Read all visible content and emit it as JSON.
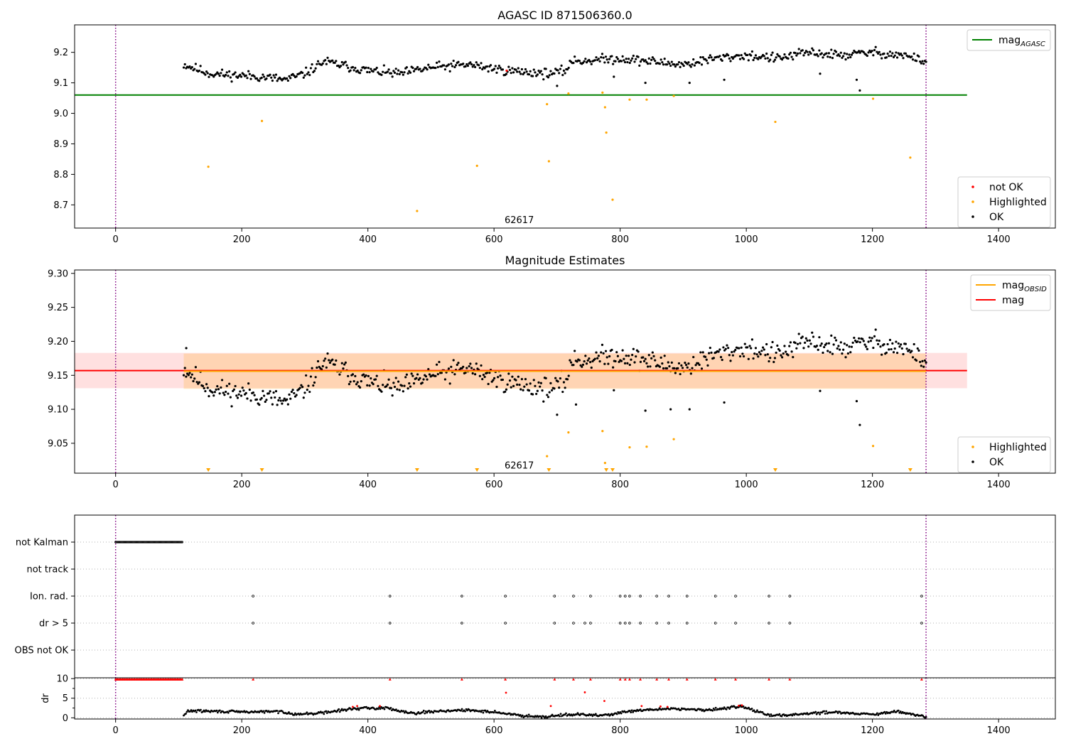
{
  "chart_data": [
    {
      "id": "top",
      "type": "scatter",
      "title": "AGASC ID 871506360.0",
      "xlim": [
        -65,
        1490
      ],
      "ylim": [
        8.624,
        9.29
      ],
      "xticks": [
        0,
        200,
        400,
        600,
        800,
        1000,
        1200,
        1400
      ],
      "yticks": [
        8.7,
        8.8,
        8.9,
        9.0,
        9.1,
        9.2
      ],
      "ytick_labels": [
        "8.7",
        "8.8",
        "8.9",
        "9.0",
        "9.1",
        "9.2"
      ],
      "vlines": [
        0,
        1285
      ],
      "annotation": {
        "text": "62617",
        "x": 640,
        "y": 8.65
      },
      "hline": {
        "name_base": "mag",
        "name_sub": "AGASC",
        "y": 9.06,
        "x0": -65,
        "x1": 1350,
        "color": "#008000"
      },
      "legend_top": [
        {
          "label": "mag",
          "sub": "AGASC",
          "color": "#008000",
          "kind": "line"
        }
      ],
      "legend_bottom": [
        {
          "label": "not OK",
          "color": "#ff0000",
          "kind": "dot"
        },
        {
          "label": "Highlighted",
          "color": "#ffa500",
          "kind": "dot"
        },
        {
          "label": "OK",
          "color": "#000000",
          "kind": "dot"
        }
      ],
      "trend": {
        "x_start": 108,
        "x_end": 1285,
        "n": 620,
        "knots": [
          [
            108,
            9.16
          ],
          [
            150,
            9.13
          ],
          [
            230,
            9.12
          ],
          [
            270,
            9.11
          ],
          [
            300,
            9.13
          ],
          [
            330,
            9.17
          ],
          [
            400,
            9.14
          ],
          [
            450,
            9.13
          ],
          [
            500,
            9.15
          ],
          [
            560,
            9.16
          ],
          [
            620,
            9.14
          ],
          [
            690,
            9.13
          ],
          [
            715,
            9.14
          ],
          [
            720,
            9.17
          ],
          [
            800,
            9.18
          ],
          [
            850,
            9.17
          ],
          [
            900,
            9.16
          ],
          [
            950,
            9.18
          ],
          [
            1000,
            9.19
          ],
          [
            1050,
            9.18
          ],
          [
            1100,
            9.2
          ],
          [
            1150,
            9.19
          ],
          [
            1200,
            9.2
          ],
          [
            1250,
            9.19
          ],
          [
            1285,
            9.17
          ]
        ],
        "spread": 0.012
      },
      "outliers": [
        [
          1180,
          9.075
        ],
        [
          1175,
          9.11
        ],
        [
          1117,
          9.13
        ],
        [
          965,
          9.11
        ],
        [
          910,
          9.1
        ],
        [
          840,
          9.1
        ],
        [
          790,
          9.12
        ],
        [
          700,
          9.09
        ]
      ],
      "highlighted": [
        [
          147,
          8.825
        ],
        [
          232,
          8.975
        ],
        [
          478,
          8.68
        ],
        [
          573,
          8.828
        ],
        [
          684,
          9.03
        ],
        [
          687,
          8.843
        ],
        [
          718,
          9.065
        ],
        [
          772,
          9.068
        ],
        [
          776,
          9.02
        ],
        [
          778,
          8.937
        ],
        [
          788,
          8.717
        ],
        [
          815,
          9.045
        ],
        [
          842,
          9.045
        ],
        [
          885,
          9.057
        ],
        [
          1046,
          8.972
        ],
        [
          1201,
          9.048
        ],
        [
          1260,
          8.855
        ]
      ],
      "not_ok": [
        [
          620,
          9.14
        ]
      ]
    },
    {
      "id": "mid",
      "type": "scatter",
      "title": "Magnitude Estimates",
      "xlim": [
        -65,
        1490
      ],
      "ylim": [
        9.006,
        9.305
      ],
      "xticks": [
        0,
        200,
        400,
        600,
        800,
        1000,
        1200,
        1400
      ],
      "yticks": [
        9.05,
        9.1,
        9.15,
        9.2,
        9.25,
        9.3
      ],
      "ytick_labels": [
        "9.05",
        "9.10",
        "9.15",
        "9.20",
        "9.25",
        "9.30"
      ],
      "vlines": [
        0,
        1285
      ],
      "annotation": {
        "text": "62617",
        "x": 640,
        "y": 9.017
      },
      "mag": {
        "y": 9.157,
        "band": [
          9.131,
          9.183
        ],
        "x0": -65,
        "x1": 1350,
        "color": "#ff0000"
      },
      "mag_obsid": {
        "y": 9.156,
        "band": [
          9.13,
          9.182
        ],
        "x0": 108,
        "x1": 1285,
        "color": "#ffa500"
      },
      "legend_top": [
        {
          "label": "mag",
          "sub": "OBSID",
          "color": "#ffa500",
          "kind": "line"
        },
        {
          "label": "mag",
          "sub": "",
          "color": "#ff0000",
          "kind": "line"
        }
      ],
      "legend_bottom": [
        {
          "label": "Highlighted",
          "color": "#ffa500",
          "kind": "dot"
        },
        {
          "label": "OK",
          "color": "#000000",
          "kind": "dot"
        }
      ],
      "trend": {
        "x_start": 108,
        "x_end": 1285,
        "n": 620,
        "knots": [
          [
            108,
            9.16
          ],
          [
            150,
            9.13
          ],
          [
            230,
            9.12
          ],
          [
            270,
            9.11
          ],
          [
            300,
            9.13
          ],
          [
            330,
            9.17
          ],
          [
            400,
            9.14
          ],
          [
            450,
            9.13
          ],
          [
            500,
            9.15
          ],
          [
            560,
            9.16
          ],
          [
            620,
            9.14
          ],
          [
            690,
            9.13
          ],
          [
            715,
            9.14
          ],
          [
            720,
            9.17
          ],
          [
            800,
            9.18
          ],
          [
            850,
            9.17
          ],
          [
            900,
            9.16
          ],
          [
            950,
            9.18
          ],
          [
            1000,
            9.19
          ],
          [
            1050,
            9.18
          ],
          [
            1100,
            9.2
          ],
          [
            1150,
            9.19
          ],
          [
            1200,
            9.2
          ],
          [
            1250,
            9.19
          ],
          [
            1285,
            9.17
          ]
        ],
        "spread": 0.012
      },
      "outliers": [
        [
          1180,
          9.077
        ],
        [
          1175,
          9.112
        ],
        [
          1117,
          9.127
        ],
        [
          965,
          9.11
        ],
        [
          910,
          9.1
        ],
        [
          880,
          9.1
        ],
        [
          840,
          9.098
        ],
        [
          790,
          9.128
        ],
        [
          730,
          9.107
        ],
        [
          700,
          9.092
        ],
        [
          112,
          9.19
        ]
      ],
      "highlighted": [
        [
          684,
          9.031
        ],
        [
          718,
          9.066
        ],
        [
          772,
          9.068
        ],
        [
          776,
          9.021
        ],
        [
          815,
          9.044
        ],
        [
          842,
          9.045
        ],
        [
          885,
          9.056
        ],
        [
          1201,
          9.046
        ]
      ],
      "low_markers": [
        147,
        232,
        478,
        573,
        687,
        778,
        788,
        1046,
        1260
      ]
    },
    {
      "id": "flags",
      "type": "scatter",
      "xlim": [
        -65,
        1490
      ],
      "xticks": [
        0,
        200,
        400,
        600,
        800,
        1000,
        1200,
        1400
      ],
      "vlines": [
        0,
        1285
      ],
      "rows": [
        "not Kalman",
        "not track",
        "Ion. rad.",
        "dr > 5",
        "OBS not OK"
      ],
      "not_kalman_range": [
        0,
        106
      ],
      "event_times": [
        218,
        435,
        549,
        618,
        696,
        726,
        753,
        800,
        808,
        815,
        832,
        858,
        877,
        906,
        951,
        983,
        1036,
        1069,
        1278
      ],
      "dr_extra": [
        744
      ]
    },
    {
      "id": "dr",
      "type": "scatter",
      "ylabel": "dr",
      "xlim": [
        -65,
        1490
      ],
      "ylim": [
        -0.3,
        10.2
      ],
      "xticks": [
        0,
        200,
        400,
        600,
        800,
        1000,
        1200,
        1400
      ],
      "yticks": [
        0,
        5,
        10
      ],
      "ytick_labels": [
        "0",
        "5",
        "10"
      ],
      "vlines": [
        0,
        1285
      ],
      "clip_range": [
        0,
        106
      ],
      "event_times": [
        218,
        435,
        549,
        618,
        696,
        726,
        753,
        800,
        808,
        815,
        832,
        858,
        877,
        906,
        951,
        983,
        1036,
        1069,
        1278
      ],
      "red_points": [
        [
          376,
          2.8
        ],
        [
          383,
          3.0
        ],
        [
          419,
          3.0
        ],
        [
          619,
          6.4
        ],
        [
          690,
          3.0
        ],
        [
          744,
          6.5
        ],
        [
          775,
          4.3
        ],
        [
          834,
          3.0
        ],
        [
          864,
          2.9
        ],
        [
          875,
          2.8
        ],
        [
          988,
          3.1
        ],
        [
          993,
          3.2
        ]
      ],
      "trend": {
        "x_start": 108,
        "x_end": 1285,
        "n": 700,
        "knots": [
          [
            108,
            0.5
          ],
          [
            115,
            1.8
          ],
          [
            200,
            1.5
          ],
          [
            260,
            1.6
          ],
          [
            290,
            0.9
          ],
          [
            330,
            1.3
          ],
          [
            380,
            2.4
          ],
          [
            430,
            2.5
          ],
          [
            470,
            1.2
          ],
          [
            520,
            1.8
          ],
          [
            560,
            1.9
          ],
          [
            600,
            1.5
          ],
          [
            640,
            0.6
          ],
          [
            680,
            0.3
          ],
          [
            720,
            0.9
          ],
          [
            770,
            0.6
          ],
          [
            820,
            1.7
          ],
          [
            880,
            2.4
          ],
          [
            940,
            1.9
          ],
          [
            990,
            3.0
          ],
          [
            1040,
            0.5
          ],
          [
            1090,
            1.0
          ],
          [
            1140,
            1.5
          ],
          [
            1200,
            0.8
          ],
          [
            1240,
            1.6
          ],
          [
            1285,
            0.2
          ]
        ],
        "spread": 0.25
      }
    }
  ]
}
